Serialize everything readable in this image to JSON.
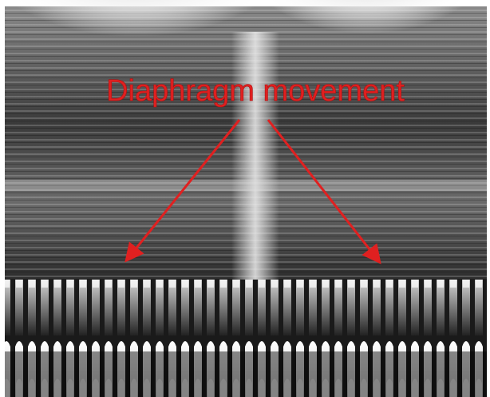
{
  "annotation": {
    "label": "Diaphragm movement"
  }
}
